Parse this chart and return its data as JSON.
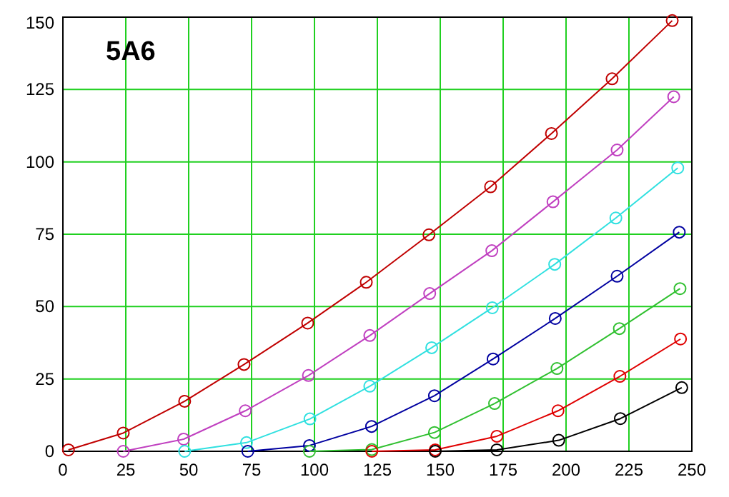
{
  "chart_data": {
    "type": "line",
    "title": "5A6",
    "xlim": [
      0,
      250
    ],
    "ylim": [
      0,
      150
    ],
    "xticks": [
      0,
      25,
      50,
      75,
      100,
      125,
      150,
      175,
      200,
      225,
      250
    ],
    "yticks": [
      0,
      25,
      50,
      75,
      100,
      125,
      150
    ],
    "grid": true,
    "marker": "circle",
    "line_style": "solid",
    "series": [
      {
        "color": "#c00000",
        "x": [
          2.2,
          24,
          48.4,
          72,
          97.3,
          120.6,
          145.5,
          170,
          194.2,
          218.3,
          242.2
        ],
        "values": [
          0.5,
          6.3,
          17.3,
          30,
          44.3,
          58.4,
          74.8,
          91.4,
          109.8,
          128.7,
          148.8
        ]
      },
      {
        "color": "#c040c0",
        "x": [
          24,
          48,
          72.5,
          97.6,
          122,
          145.8,
          170.5,
          194.8,
          220.3,
          242.8
        ],
        "values": [
          0,
          4.2,
          14,
          26.2,
          40,
          54.5,
          69.3,
          86.2,
          104.1,
          122.5
        ]
      },
      {
        "color": "#30e0e0",
        "x": [
          48.4,
          73,
          98.2,
          122,
          146.6,
          170.7,
          195.5,
          219.8,
          244.4
        ],
        "values": [
          0,
          3,
          11.2,
          22.5,
          35.8,
          49.6,
          64.6,
          80.6,
          97.9
        ]
      },
      {
        "color": "#0000a0",
        "x": [
          73.5,
          98,
          122.7,
          147.7,
          171,
          195.7,
          220.3,
          245
        ],
        "values": [
          0,
          2,
          8.6,
          19.2,
          31.9,
          45.9,
          60.5,
          75.7
        ]
      },
      {
        "color": "#30c030",
        "x": [
          98,
          122.8,
          147.7,
          171.6,
          196.4,
          221.2,
          245.3
        ],
        "values": [
          0,
          0.6,
          6.5,
          16.5,
          28.6,
          42.4,
          56.2
        ]
      },
      {
        "color": "#e00000",
        "x": [
          122.8,
          148,
          172.5,
          196.8,
          221.4,
          245.5
        ],
        "values": [
          0,
          0.5,
          5.2,
          14,
          25.9,
          38.8
        ]
      },
      {
        "color": "#000000",
        "x": [
          148,
          172.5,
          197.1,
          221.6,
          246
        ],
        "values": [
          0,
          0.5,
          3.8,
          11.3,
          22
        ]
      }
    ]
  }
}
